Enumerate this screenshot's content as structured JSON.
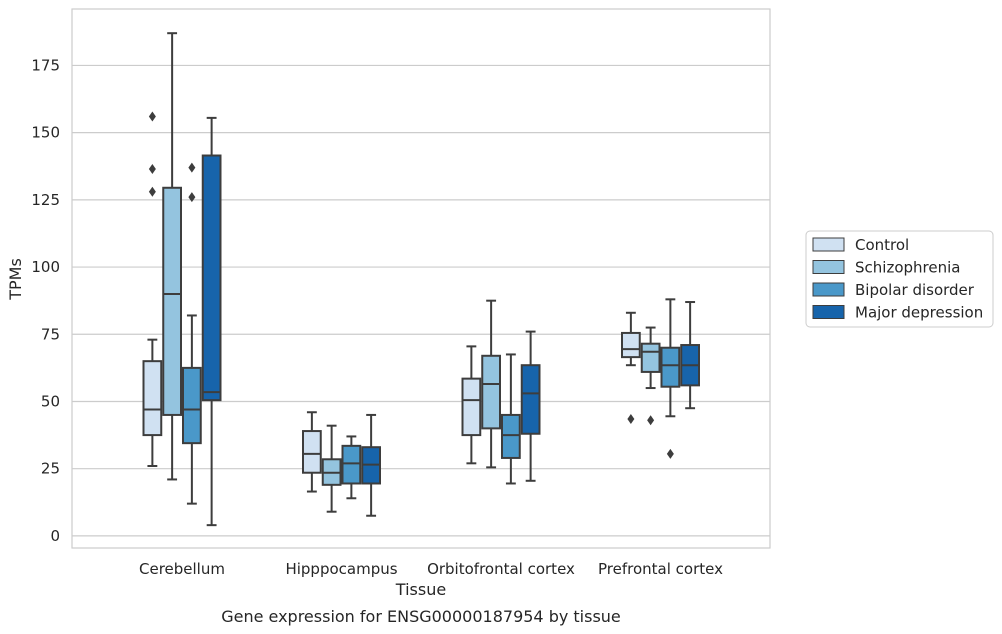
{
  "chart_data": {
    "type": "box",
    "title": "",
    "caption": "Gene expression for ENSG00000187954 by tissue",
    "xlabel": "Tissue",
    "ylabel": "TPMs",
    "ylim": [
      -4.5,
      196
    ],
    "yticks": [
      0,
      25,
      50,
      75,
      100,
      125,
      150,
      175
    ],
    "grid": true,
    "legend_position": "right",
    "categories": [
      "Cerebellum",
      "Hipppocampus",
      "Orbitofrontal cortex",
      "Prefrontal cortex"
    ],
    "series": [
      {
        "name": "Control",
        "color": "#d0e1f2",
        "boxes": [
          {
            "whisker_low": 26,
            "q1": 37.5,
            "median": 47,
            "q3": 65,
            "whisker_high": 73,
            "outliers": [
              128,
              136.5,
              156
            ]
          },
          {
            "whisker_low": 16.5,
            "q1": 23.5,
            "median": 30.5,
            "q3": 39,
            "whisker_high": 46,
            "outliers": []
          },
          {
            "whisker_low": 27,
            "q1": 37.5,
            "median": 50.5,
            "q3": 58.5,
            "whisker_high": 70.5,
            "outliers": []
          },
          {
            "whisker_low": 63.5,
            "q1": 66.5,
            "median": 69.5,
            "q3": 75.5,
            "whisker_high": 83,
            "outliers": [
              43.5
            ]
          }
        ]
      },
      {
        "name": "Schizophrenia",
        "color": "#94c4df",
        "boxes": [
          {
            "whisker_low": 21,
            "q1": 45,
            "median": 90,
            "q3": 129.5,
            "whisker_high": 187,
            "outliers": []
          },
          {
            "whisker_low": 9,
            "q1": 19,
            "median": 23.5,
            "q3": 28.5,
            "whisker_high": 41,
            "outliers": []
          },
          {
            "whisker_low": 25.5,
            "q1": 40,
            "median": 56.5,
            "q3": 67,
            "whisker_high": 87.5,
            "outliers": []
          },
          {
            "whisker_low": 55,
            "q1": 61,
            "median": 68.5,
            "q3": 71.5,
            "whisker_high": 77.5,
            "outliers": [
              43
            ]
          }
        ]
      },
      {
        "name": "Bipolar disorder",
        "color": "#4a98c9",
        "boxes": [
          {
            "whisker_low": 12,
            "q1": 34.5,
            "median": 47,
            "q3": 62.5,
            "whisker_high": 82,
            "outliers": [
              126,
              137
            ]
          },
          {
            "whisker_low": 14,
            "q1": 19.5,
            "median": 27,
            "q3": 33.5,
            "whisker_high": 37,
            "outliers": []
          },
          {
            "whisker_low": 19.5,
            "q1": 29,
            "median": 37.5,
            "q3": 45,
            "whisker_high": 67.5,
            "outliers": []
          },
          {
            "whisker_low": 44.5,
            "q1": 55.5,
            "median": 63.5,
            "q3": 70,
            "whisker_high": 88,
            "outliers": [
              30.5
            ]
          }
        ]
      },
      {
        "name": "Major depression",
        "color": "#1764ab",
        "boxes": [
          {
            "whisker_low": 4,
            "q1": 50.5,
            "median": 53.5,
            "q3": 141.5,
            "whisker_high": 155.5,
            "outliers": []
          },
          {
            "whisker_low": 7.5,
            "q1": 19.5,
            "median": 26.5,
            "q3": 33,
            "whisker_high": 45,
            "outliers": []
          },
          {
            "whisker_low": 20.5,
            "q1": 38,
            "median": 53,
            "q3": 63.5,
            "whisker_high": 76,
            "outliers": []
          },
          {
            "whisker_low": 47.5,
            "q1": 56,
            "median": 63.5,
            "q3": 71,
            "whisker_high": 87,
            "outliers": []
          }
        ]
      }
    ]
  }
}
